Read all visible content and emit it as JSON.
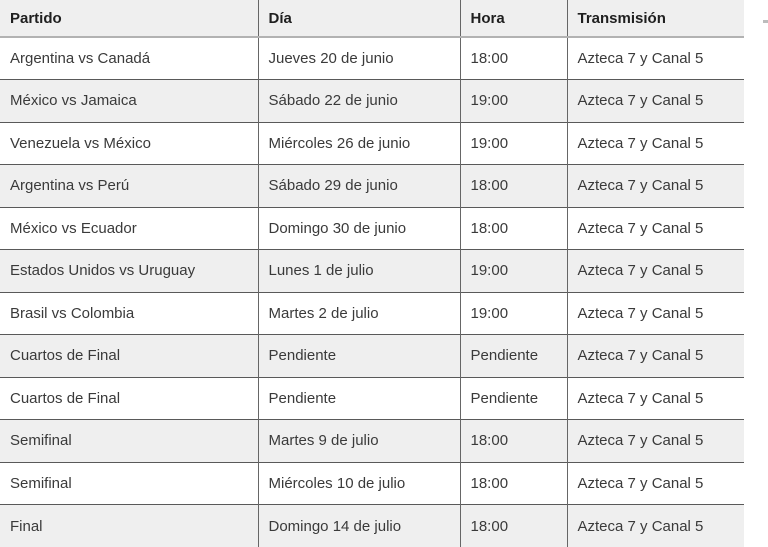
{
  "table": {
    "columns": [
      {
        "key": "partido",
        "label": "Partido"
      },
      {
        "key": "dia",
        "label": "Día"
      },
      {
        "key": "hora",
        "label": "Hora"
      },
      {
        "key": "transmision",
        "label": "Transmisión"
      }
    ],
    "rows": [
      [
        "Argentina vs Canadá",
        "Jueves 20 de junio",
        "18:00",
        "Azteca 7 y Canal 5"
      ],
      [
        "México vs Jamaica",
        "Sábado 22 de junio",
        "19:00",
        "Azteca 7 y Canal 5"
      ],
      [
        "Venezuela vs México",
        "Miércoles 26 de junio",
        "19:00",
        "Azteca 7 y Canal 5"
      ],
      [
        "Argentina vs Perú",
        "Sábado 29 de junio",
        "18:00",
        "Azteca 7 y Canal 5"
      ],
      [
        "México vs Ecuador",
        "Domingo 30 de junio",
        "18:00",
        "Azteca 7 y Canal 5"
      ],
      [
        "Estados Unidos vs Uruguay",
        "Lunes 1 de julio",
        "19:00",
        "Azteca 7 y Canal 5"
      ],
      [
        "Brasil vs Colombia",
        "Martes 2 de julio",
        "19:00",
        "Azteca 7 y Canal 5"
      ],
      [
        "Cuartos de Final",
        "Pendiente",
        "Pendiente",
        "Azteca 7 y Canal 5"
      ],
      [
        "Cuartos de Final",
        "Pendiente",
        "Pendiente",
        "Azteca 7 y Canal 5"
      ],
      [
        "Semifinal",
        "Martes 9 de julio",
        "18:00",
        "Azteca 7 y Canal 5"
      ],
      [
        "Semifinal",
        "Miércoles 10 de julio",
        "18:00",
        "Azteca 7 y Canal 5"
      ],
      [
        "Final",
        "Domingo 14 de julio",
        "18:00",
        "Azteca 7 y Canal 5"
      ]
    ]
  },
  "colors": {
    "header_bg": "#efefef",
    "row_bg": "#ffffff",
    "row_alt_bg": "#efefef",
    "header_text": "#1f1f1f",
    "cell_text": "#3a3a3a",
    "row_border": "#595959",
    "column_border": "#666666",
    "header_bottom_border": "#b2b2b2"
  }
}
